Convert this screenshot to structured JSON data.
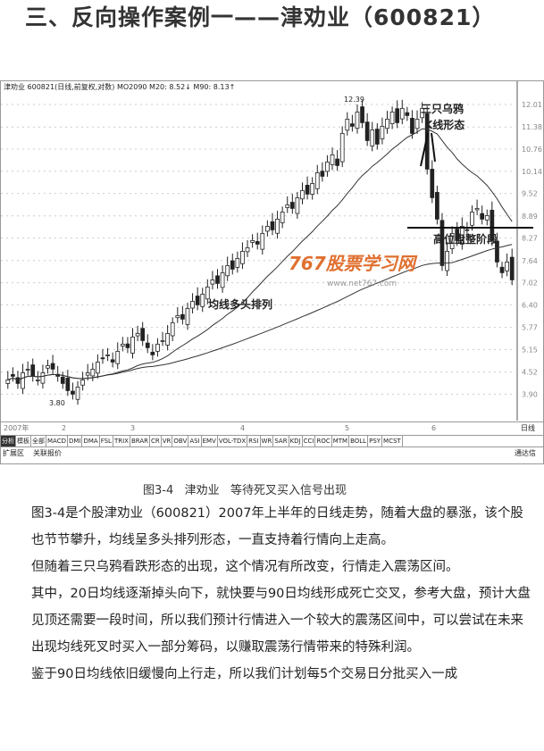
{
  "title": "三、反向操作案例一——津劝业（600821）",
  "chart": {
    "header": "津劝业 600821(日线,前复权,对数) MO2090 M20: 8.52↓ M90: 8.13↑",
    "y_ticks": [
      "12.01",
      "11.38",
      "10.76",
      "10.14",
      "9.52",
      "8.89",
      "8.27",
      "7.64",
      "7.02",
      "6.40",
      "5.77",
      "5.15",
      "4.52",
      "3.90"
    ],
    "high_label": "12.39",
    "low_label": "3.80",
    "annotation_crows": [
      "三只乌鸦",
      "K线形态"
    ],
    "annotation_range": "高位盘整阶段",
    "annotation_ma": "均线多头排列",
    "watermark": "767股票学习网",
    "watermark_url": "www.net767.com",
    "months": [
      "2007年",
      "2",
      "3",
      "4",
      "5",
      "6"
    ],
    "period": "日线",
    "tabs": [
      "分析",
      "模板",
      "全部",
      "MACD",
      "DMI",
      "DMA",
      "FSL",
      "TRIX",
      "BRAR",
      "CR",
      "VR",
      "OBV",
      "ASI",
      "EMV",
      "VOL-TDX",
      "RSI",
      "WR",
      "SAR",
      "KDJ",
      "CCI",
      "ROC",
      "MTM",
      "BOLL",
      "PSY",
      "MCST"
    ],
    "bottom_left": [
      "扩展区",
      "关联报价"
    ],
    "bottom_right": "通达信",
    "closes": [
      4.3,
      4.4,
      4.2,
      4.5,
      4.6,
      4.4,
      4.3,
      4.5,
      4.7,
      4.6,
      4.4,
      4.2,
      4.0,
      3.9,
      4.1,
      4.3,
      4.5,
      4.6,
      4.8,
      4.9,
      5.0,
      4.8,
      5.1,
      5.3,
      5.2,
      5.5,
      5.6,
      5.4,
      5.2,
      5.0,
      5.3,
      5.4,
      5.6,
      5.9,
      6.1,
      6.0,
      6.3,
      6.5,
      6.4,
      6.7,
      6.9,
      7.1,
      7.0,
      7.3,
      7.5,
      7.4,
      7.7,
      7.9,
      8.0,
      8.2,
      8.1,
      8.4,
      8.6,
      8.5,
      8.8,
      9.0,
      9.2,
      9.1,
      9.4,
      9.6,
      9.5,
      9.8,
      10.1,
      10.0,
      10.4,
      10.6,
      10.3,
      11.2,
      11.6,
      11.4,
      11.8,
      11.5,
      11.0,
      11.3,
      10.9,
      11.4,
      11.6,
      11.8,
      11.5,
      11.9,
      11.7,
      11.2,
      11.6,
      11.9,
      10.2,
      9.4,
      8.8,
      7.5,
      7.9,
      8.4,
      8.2,
      8.6,
      8.5,
      9.0,
      9.1,
      8.8,
      8.9,
      8.2,
      7.6,
      7.3,
      7.6,
      7.1
    ]
  },
  "caption": "图3-4   津劝业   等待死叉买入信号出现",
  "paragraphs": [
    "图3-4是个股津劝业（600821）2007年上半年的日线走势，随着大盘的暴涨，该个股也节节攀升，均线呈多头排列形态，一直支持着行情向上走高。",
    "但随着三只乌鸦看跌形态的出现，这个情况有所改变，行情走入震荡区间。",
    "其中，20日均线逐渐掉头向下，就快要与90日均线形成死亡交叉，参考大盘，预计大盘见顶还需要一段时间，所以我们预计行情进入一个较大的震荡区间中，可以尝试在未来出现均线死叉时买入一部分筹码，以赚取震荡行情带来的特殊利润。",
    "鉴于90日均线依旧缓慢向上行走，所以我们计划每5个交易日分批买入一成"
  ]
}
